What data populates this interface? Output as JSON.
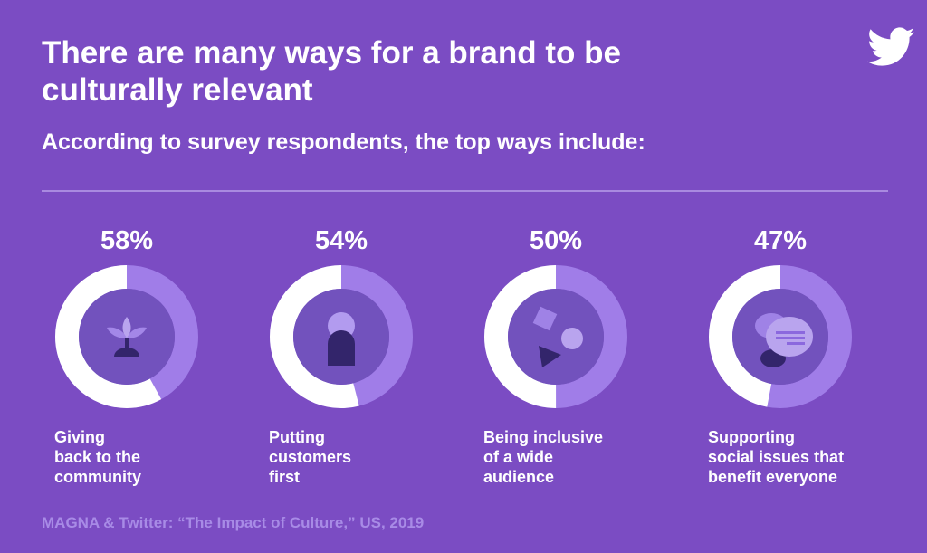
{
  "title": "There are many ways for a brand to be culturally relevant",
  "subtitle": "According to survey respondents, the top ways include:",
  "logo": "twitter-bird-icon",
  "source": "MAGNA & Twitter: “The Impact of Culture,” US, 2019",
  "colors": {
    "background": "#7b4cc3",
    "filled": "#ffffff",
    "remainder": "#a07de8",
    "inner": "#7252bd",
    "icon_dark": "#33256b"
  },
  "chart_data": [
    {
      "type": "pie",
      "variant": "donut",
      "value": 58,
      "value_label": "58%",
      "label": "Giving back to the community",
      "label_lines": [
        "Giving",
        "back to the",
        "community"
      ],
      "icon": "plant-icon"
    },
    {
      "type": "pie",
      "variant": "donut",
      "value": 54,
      "value_label": "54%",
      "label": "Putting customers first",
      "label_lines": [
        "Putting",
        "customers",
        "first"
      ],
      "icon": "person-icon"
    },
    {
      "type": "pie",
      "variant": "donut",
      "value": 50,
      "value_label": "50%",
      "label": "Being inclusive of a wide audience",
      "label_lines": [
        "Being inclusive",
        "of a wide",
        "audience"
      ],
      "icon": "shapes-icon"
    },
    {
      "type": "pie",
      "variant": "donut",
      "value": 47,
      "value_label": "47%",
      "label": "Supporting social issues that benefit everyone",
      "label_lines": [
        "Supporting",
        "social issues that",
        "benefit everyone"
      ],
      "icon": "speech-bubbles-icon"
    }
  ]
}
